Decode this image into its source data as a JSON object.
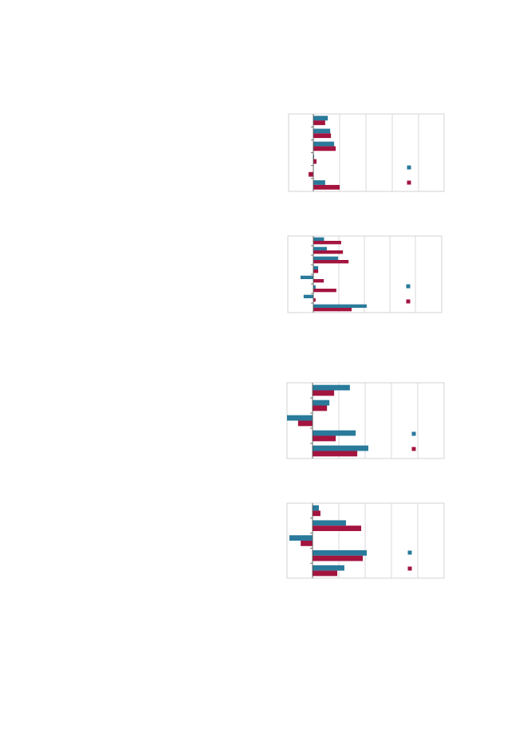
{
  "chart_data": [
    {
      "type": "bar",
      "orientation": "horizontal",
      "categories": [
        null,
        null,
        null,
        null,
        null,
        null
      ],
      "series": [
        {
          "color": "#2a7a9b",
          "values": [
            0.55,
            0.64,
            0.79,
            0.03,
            0,
            0.45
          ]
        },
        {
          "color": "#a3143f",
          "values": [
            0.45,
            0.67,
            0.85,
            0.12,
            -0.18,
            1.0
          ]
        }
      ],
      "xlim": [
        -0.94,
        4.97
      ],
      "xticks": [
        1,
        2,
        3,
        4
      ],
      "grid": true,
      "legend": "right"
    },
    {
      "type": "bar",
      "orientation": "horizontal",
      "categories": [
        null,
        null,
        null,
        null,
        null,
        null,
        null,
        null
      ],
      "series": [
        {
          "color": "#2a7a9b",
          "values": [
            0.42,
            0.53,
            0.97,
            0.19,
            -0.5,
            0.09,
            -0.38,
            2.09
          ]
        },
        {
          "color": "#a3143f",
          "values": [
            1.09,
            1.16,
            1.38,
            0.19,
            0.41,
            0.9,
            0.09,
            1.5
          ]
        }
      ],
      "xlim": [
        -1.0,
        5.03
      ],
      "xticks": [
        1,
        2,
        3,
        4
      ],
      "grid": true,
      "legend": "right"
    },
    {
      "type": "bar",
      "orientation": "horizontal",
      "categories": [
        null,
        null,
        null,
        null,
        null
      ],
      "series": [
        {
          "color": "#2a7a9b",
          "values": [
            1.42,
            0.64,
            -0.97,
            1.64,
            2.12
          ]
        },
        {
          "color": "#a3143f",
          "values": [
            0.82,
            0.55,
            -0.55,
            0.88,
            1.7
          ]
        }
      ],
      "xlim": [
        -0.97,
        5.0
      ],
      "xticks": [
        1,
        2,
        3,
        4
      ],
      "grid": true,
      "legend": "right"
    },
    {
      "type": "bar",
      "orientation": "horizontal",
      "categories": [
        null,
        null,
        null,
        null,
        null
      ],
      "series": [
        {
          "color": "#2a7a9b",
          "values": [
            0.24,
            1.27,
            -0.88,
            2.06,
            1.21
          ]
        },
        {
          "color": "#a3143f",
          "values": [
            0.3,
            1.85,
            -0.45,
            1.91,
            0.94
          ]
        }
      ],
      "xlim": [
        -0.97,
        5.0
      ],
      "xticks": [
        1,
        2,
        3,
        4
      ],
      "grid": true,
      "legend": "right"
    }
  ]
}
